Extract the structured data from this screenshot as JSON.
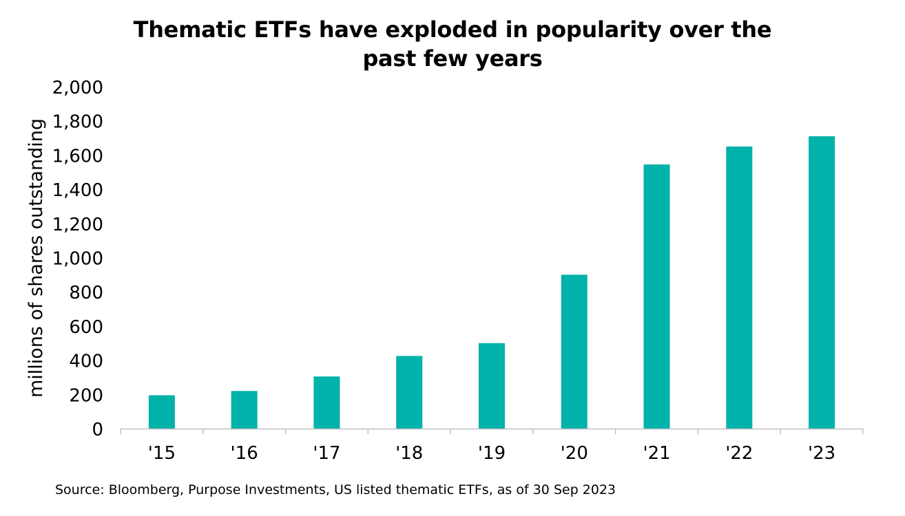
{
  "chart_data": {
    "type": "bar",
    "title_lines": [
      "Thematic ETFs have exploded in popularity over the",
      "past few years"
    ],
    "xlabel": "",
    "ylabel": "millions of shares outstanding",
    "categories": [
      "'15",
      "'16",
      "'17",
      "'18",
      "'19",
      "'20",
      "'21",
      "'22",
      "'23"
    ],
    "values": [
      195,
      220,
      305,
      425,
      500,
      900,
      1545,
      1650,
      1710
    ],
    "ylim": [
      0,
      2000
    ],
    "yticks": [
      0,
      200,
      400,
      600,
      800,
      1000,
      1200,
      1400,
      1600,
      1800,
      2000
    ],
    "ytick_labels": [
      "0",
      "200",
      "400",
      "600",
      "800",
      "1,000",
      "1,200",
      "1,400",
      "1,600",
      "1,800",
      "2,000"
    ],
    "bar_color": "#00B2A9",
    "axis_color": "#BFBFBF",
    "grid": false,
    "legend": "none",
    "source": "Source: Bloomberg, Purpose Investments, US listed thematic ETFs, as of 30 Sep 2023"
  }
}
